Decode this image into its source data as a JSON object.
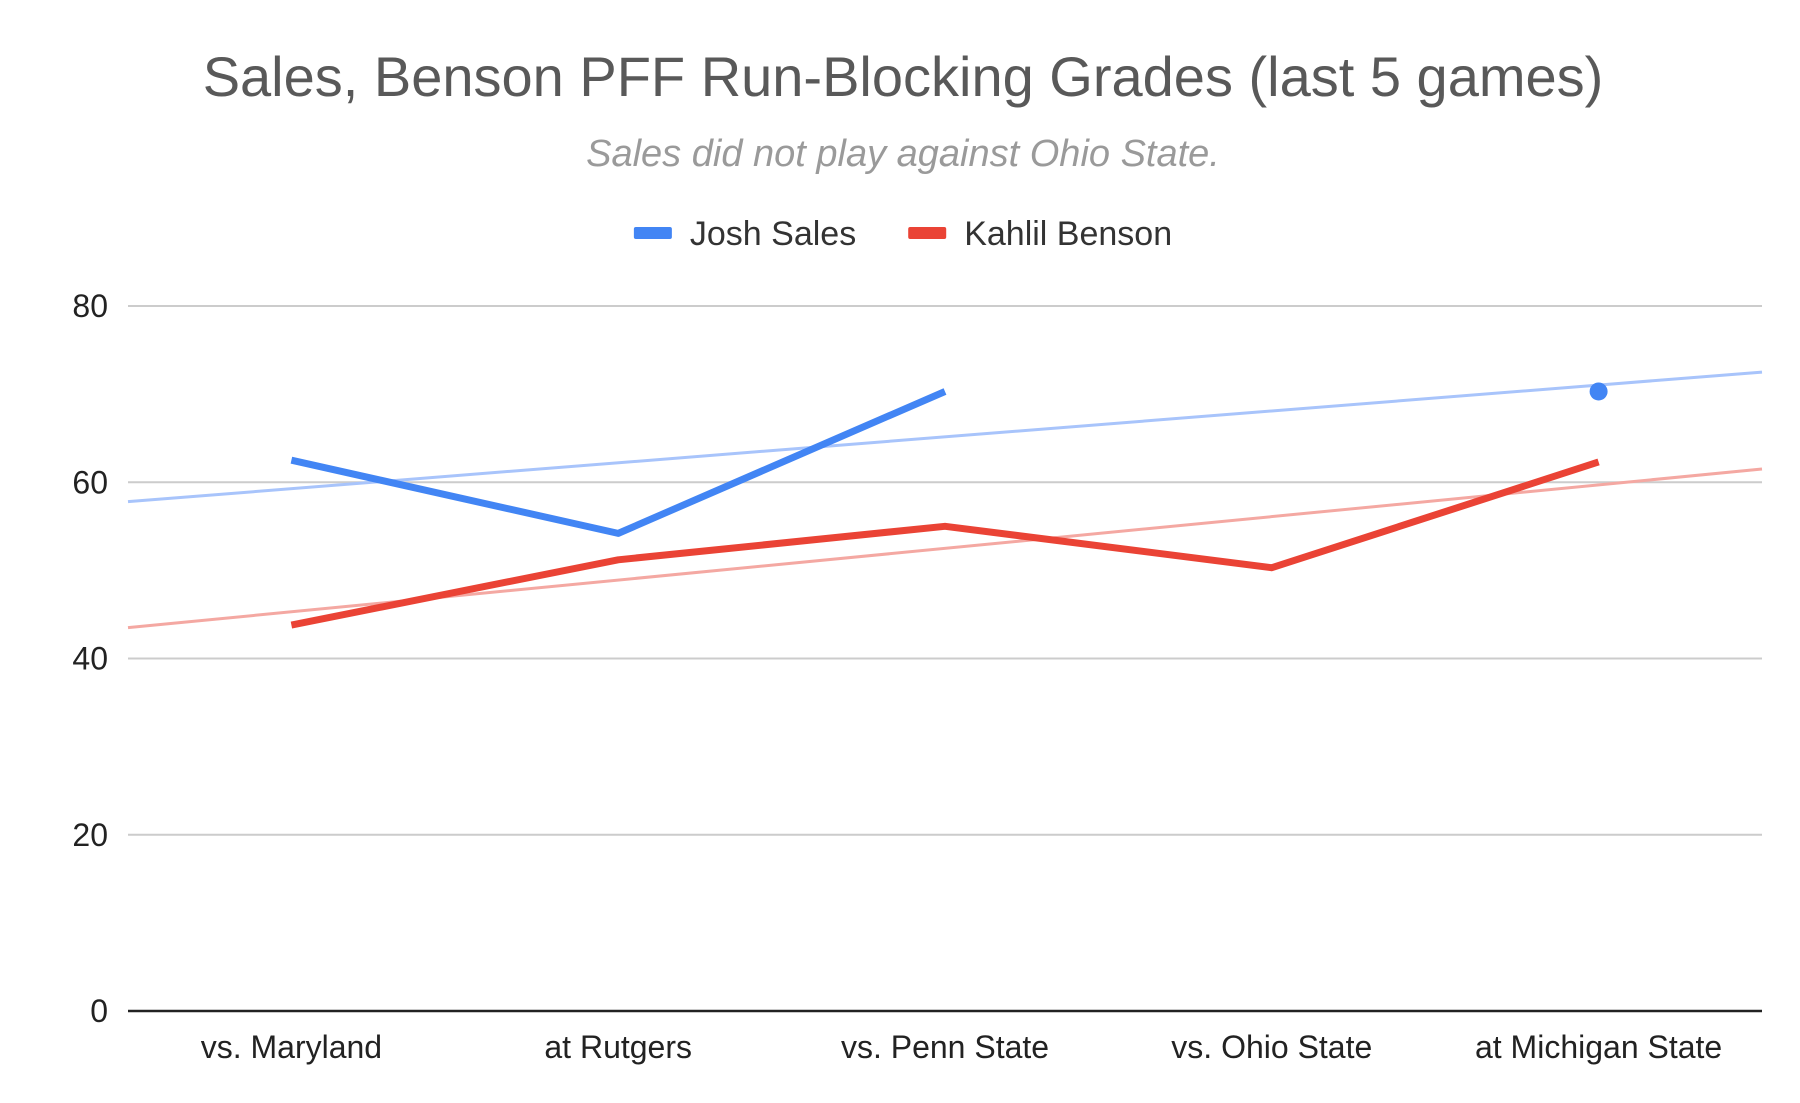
{
  "chart_data": {
    "type": "line",
    "title": "Sales, Benson PFF Run-Blocking Grades (last 5 games)",
    "subtitle": "Sales did not play against Ohio State.",
    "xlabel": "",
    "ylabel": "",
    "categories": [
      "vs. Maryland",
      "at Rutgers",
      "vs. Penn State",
      "vs. Ohio State",
      "at Michigan State"
    ],
    "ylim": [
      0,
      80
    ],
    "yticks": [
      0,
      20,
      40,
      60,
      80
    ],
    "grid": true,
    "legend": "top",
    "series": [
      {
        "name": "Josh Sales",
        "color": "#4285f4",
        "values": [
          62.5,
          54.2,
          70.3,
          null,
          70.3
        ],
        "trendline": {
          "color": "#a8c4fb",
          "start": 57.8,
          "end": 72.5
        }
      },
      {
        "name": "Kahlil Benson",
        "color": "#ea4335",
        "values": [
          43.8,
          51.2,
          55.0,
          50.3,
          62.3
        ],
        "trendline": {
          "color": "#f4a8a2",
          "start": 43.5,
          "end": 61.5
        }
      }
    ]
  }
}
